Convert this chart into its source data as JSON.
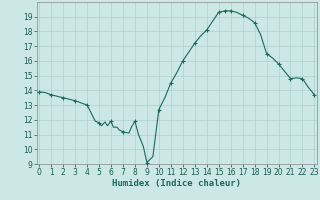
{
  "xlabel": "Humidex (Indice chaleur)",
  "x": [
    0,
    0.5,
    1,
    1.5,
    2,
    2.5,
    3,
    3.5,
    4,
    4.2,
    4.5,
    4.7,
    5,
    5.2,
    5.5,
    5.7,
    6,
    6.2,
    6.5,
    6.7,
    7,
    7.2,
    7.5,
    7.7,
    8,
    8.3,
    8.7,
    9,
    9.5,
    10,
    10.5,
    11,
    11.5,
    12,
    12.5,
    13,
    13.5,
    14,
    14.5,
    15,
    15.5,
    16,
    16.5,
    17,
    17.5,
    18,
    18.5,
    19,
    19.5,
    20,
    20.5,
    21,
    21.5,
    22,
    22.5,
    23
  ],
  "y": [
    13.9,
    13.85,
    13.7,
    13.6,
    13.5,
    13.4,
    13.3,
    13.15,
    13.0,
    12.7,
    12.2,
    11.9,
    11.8,
    11.6,
    11.85,
    11.6,
    11.9,
    11.5,
    11.5,
    11.3,
    11.2,
    11.15,
    11.1,
    11.5,
    11.9,
    11.0,
    10.2,
    9.1,
    9.5,
    12.7,
    13.5,
    14.5,
    15.2,
    16.0,
    16.6,
    17.2,
    17.7,
    18.1,
    18.7,
    19.3,
    19.4,
    19.4,
    19.3,
    19.1,
    18.9,
    18.6,
    17.8,
    16.5,
    16.2,
    15.8,
    15.3,
    14.8,
    14.85,
    14.8,
    14.2,
    13.7
  ],
  "marker_x": [
    0,
    1,
    2,
    3,
    4,
    5,
    6,
    7,
    8,
    9,
    10,
    11,
    12,
    13,
    14,
    15,
    15.5,
    16,
    17,
    18,
    19,
    20,
    21,
    22,
    23
  ],
  "marker_y": [
    13.9,
    13.7,
    13.5,
    13.3,
    13.0,
    11.8,
    11.9,
    11.2,
    11.9,
    9.1,
    12.7,
    14.5,
    16.0,
    17.2,
    18.1,
    19.3,
    19.4,
    19.4,
    19.1,
    18.6,
    16.5,
    15.8,
    14.8,
    14.8,
    13.7
  ],
  "line_color": "#1a6b5a",
  "marker_color": "#1a6b5a",
  "bg_color": "#cce8e4",
  "grid_color": "#aed0cb",
  "ylim": [
    9,
    20
  ],
  "xlim": [
    -0.2,
    23.2
  ],
  "yticks": [
    9,
    10,
    11,
    12,
    13,
    14,
    15,
    16,
    17,
    18,
    19
  ],
  "xticks": [
    0,
    1,
    2,
    3,
    4,
    5,
    6,
    7,
    8,
    9,
    10,
    11,
    12,
    13,
    14,
    15,
    16,
    17,
    18,
    19,
    20,
    21,
    22,
    23
  ],
  "tick_fontsize": 5.5,
  "xlabel_fontsize": 6.5
}
